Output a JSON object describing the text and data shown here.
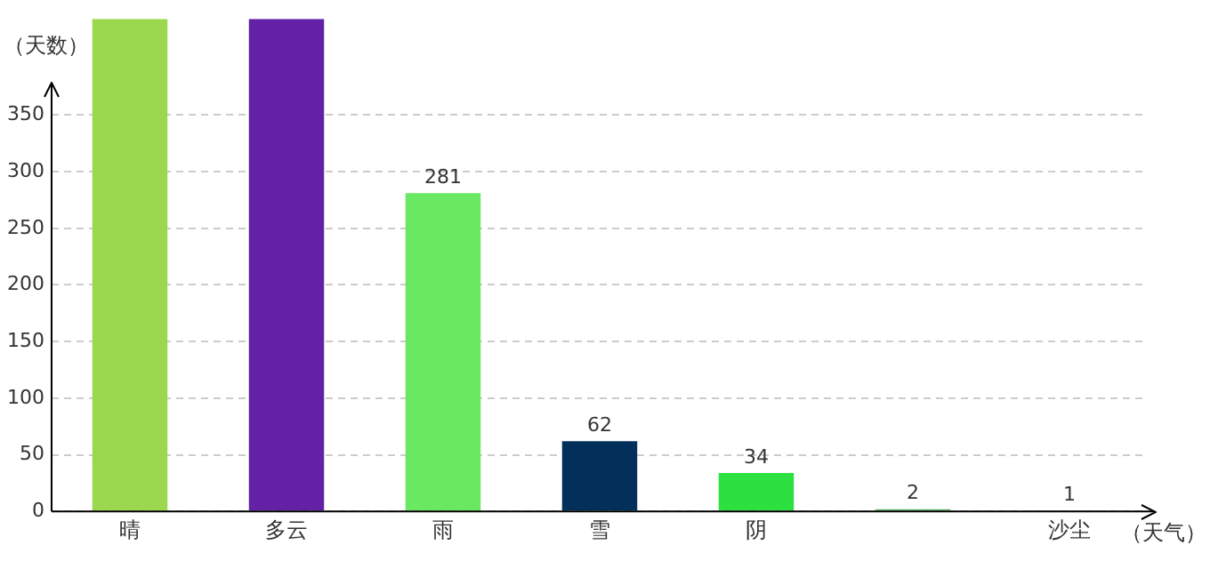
{
  "chart_data": {
    "type": "bar",
    "xlabel": "（天气）",
    "ylabel": "（天数）",
    "categories": [
      "晴",
      "多云",
      "雨",
      "雪",
      "阴",
      null,
      "沙尘"
    ],
    "values": [
      435,
      435,
      281,
      62,
      34,
      2,
      1
    ],
    "value_labels": [
      null,
      null,
      "281",
      "62",
      "34",
      "2",
      "1"
    ],
    "colors": [
      "#9bd84f",
      "#6322a6",
      "#6ae862",
      "#03305a",
      "#2ce03f",
      "#5fb86a",
      "#3aa05a"
    ],
    "ylim": [
      0,
      435
    ],
    "yticks": [
      0,
      50,
      100,
      150,
      200,
      250,
      300,
      350
    ],
    "grid": "y",
    "legend": false
  }
}
